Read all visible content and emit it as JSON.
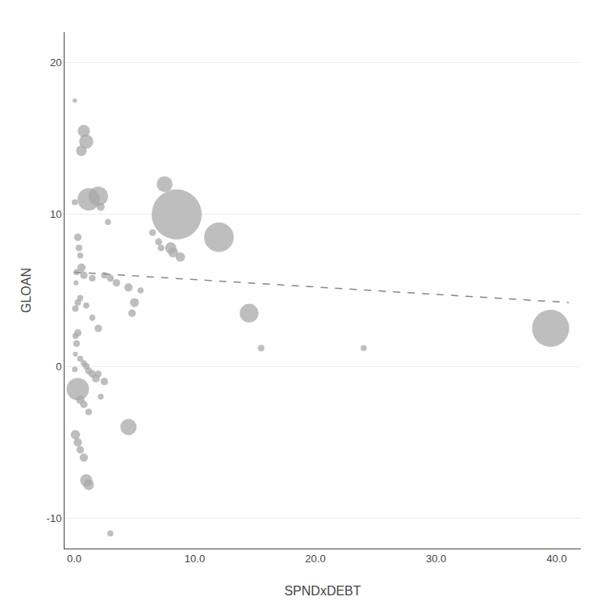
{
  "chart_data": {
    "type": "scatter",
    "xlabel": "SPNDxDEBT",
    "ylabel": "GLOAN",
    "series": [
      {
        "type": "bubble",
        "color": "#a8a8a8",
        "x": [
          0.05,
          0.8,
          1.0,
          0.6,
          1.2,
          2.0,
          2.2,
          0.05,
          7.5,
          8.5,
          8.0,
          8.2,
          8.8,
          7.0,
          7.2,
          12.0,
          0.3,
          0.4,
          0.5,
          0.6,
          0.8,
          1.5,
          0.2,
          2.5,
          2.8,
          3.0,
          3.5,
          4.5,
          5.0,
          5.5,
          6.5,
          14.5,
          4.8,
          15.5,
          24.0,
          39.5,
          0.1,
          0.3,
          0.5,
          0.15,
          1.0,
          1.5,
          2.0,
          0.1,
          0.2,
          0.3,
          0.5,
          0.8,
          1.0,
          1.2,
          1.5,
          1.8,
          2.0,
          2.5,
          2.2,
          0.3,
          0.5,
          0.8,
          1.2,
          4.5,
          0.05,
          0.1,
          0.1,
          0.3,
          0.5,
          0.8,
          1.0,
          1.2,
          3.0
        ],
        "values": [
          17.5,
          15.5,
          14.8,
          14.2,
          11.0,
          11.2,
          10.5,
          10.8,
          12.0,
          10.0,
          7.8,
          7.5,
          7.2,
          8.2,
          7.8,
          8.5,
          8.5,
          7.8,
          7.3,
          6.5,
          6.0,
          5.8,
          6.2,
          6.0,
          9.5,
          5.8,
          5.5,
          5.2,
          4.2,
          5.0,
          8.8,
          3.5,
          3.5,
          1.2,
          1.2,
          2.5,
          3.8,
          4.2,
          4.5,
          5.5,
          4.0,
          3.2,
          2.5,
          2.0,
          1.5,
          2.2,
          0.5,
          0.2,
          0.0,
          -0.3,
          -0.5,
          -0.8,
          -0.5,
          -1.0,
          -2.0,
          -1.5,
          -2.2,
          -2.5,
          -3.0,
          -4.0,
          -0.2,
          0.8,
          -4.5,
          -5.0,
          -5.5,
          -6.0,
          -7.5,
          -7.8,
          -11.0
        ],
        "sizes": [
          15,
          120,
          160,
          90,
          400,
          300,
          50,
          30,
          200,
          2000,
          100,
          80,
          70,
          40,
          35,
          700,
          45,
          35,
          30,
          55,
          45,
          35,
          30,
          35,
          30,
          40,
          45,
          55,
          65,
          30,
          35,
          280,
          45,
          35,
          30,
          1100,
          35,
          35,
          30,
          20,
          30,
          30,
          45,
          30,
          35,
          45,
          30,
          30,
          35,
          40,
          45,
          50,
          35,
          45,
          28,
          400,
          55,
          45,
          35,
          210,
          25,
          20,
          70,
          55,
          45,
          55,
          120,
          90,
          30
        ]
      },
      {
        "type": "line",
        "color": "#888888",
        "line_style": "dashed",
        "x": [
          0,
          41
        ],
        "values": [
          6.2,
          4.2
        ]
      }
    ],
    "xlim": [
      -0.8,
      42
    ],
    "ylim": [
      -12,
      22
    ],
    "xticks": [
      {
        "value": 0.0,
        "label": "0.0"
      },
      {
        "value": 10.0,
        "label": "10.0"
      },
      {
        "value": 20.0,
        "label": "20.0"
      },
      {
        "value": 30.0,
        "label": "30.0"
      },
      {
        "value": 40.0,
        "label": "40.0"
      }
    ],
    "yticks": [
      -10,
      0,
      10,
      20
    ],
    "grid": "y"
  }
}
